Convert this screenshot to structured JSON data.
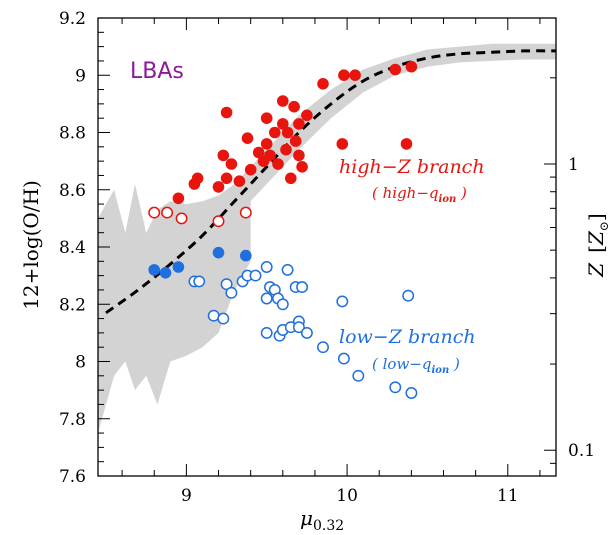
{
  "chart_data": {
    "type": "scatter",
    "xlabel": "μ",
    "xlabel_sub": "0.32",
    "ylabel": "12+log(O/H)",
    "y2label": "Z [Z☉]",
    "y2label_parts": [
      "Z",
      "[",
      "Z",
      "⊙",
      "]"
    ],
    "xlim": [
      8.45,
      11.3
    ],
    "ylim": [
      7.6,
      9.2
    ],
    "x_ticks": [
      9,
      10,
      11
    ],
    "x_tick_labels": [
      "9",
      "10",
      "11"
    ],
    "y_ticks": [
      7.6,
      7.8,
      8.0,
      8.2,
      8.4,
      8.6,
      8.8,
      9.0,
      9.2
    ],
    "y_tick_labels": [
      "7.6",
      "7.8",
      "8",
      "8.2",
      "8.4",
      "8.6",
      "8.8",
      "9",
      "9.2"
    ],
    "y2_ticks": [
      {
        "metallicity": 1,
        "label": "1"
      },
      {
        "metallicity": 0.1,
        "label": "0.1"
      }
    ],
    "annotations": {
      "lbas": "LBAs",
      "high_branch": "high−Z branch",
      "high_sub_open": "( high−q",
      "high_sub_sub": "ion",
      "high_sub_close": " )",
      "low_branch": "low−Z branch",
      "low_sub_open": "( low−q",
      "low_sub_sub": "ion",
      "low_sub_close": " )"
    },
    "colors": {
      "high": "#e8150f",
      "low": "#1f6fde",
      "band": "#d3d3d3",
      "lba": "#8b1a9a"
    },
    "fit_curve": {
      "x": [
        8.5,
        8.7,
        8.9,
        9.1,
        9.3,
        9.5,
        9.7,
        9.9,
        10.1,
        10.3,
        10.5,
        10.7,
        10.9,
        11.1,
        11.3
      ],
      "y": [
        8.17,
        8.25,
        8.34,
        8.44,
        8.56,
        8.68,
        8.8,
        8.9,
        8.98,
        9.03,
        9.06,
        9.075,
        9.08,
        9.085,
        9.085
      ]
    },
    "fit_band": {
      "x": [
        8.5,
        8.7,
        8.9,
        9.1,
        9.3,
        9.5,
        9.7,
        9.9,
        10.1,
        10.3,
        10.5,
        10.7,
        10.9,
        11.1,
        11.3
      ],
      "upper": [
        8.22,
        8.31,
        8.4,
        8.5,
        8.62,
        8.74,
        8.86,
        8.95,
        9.02,
        9.06,
        9.09,
        9.1,
        9.11,
        9.11,
        9.11
      ],
      "lower": [
        8.12,
        8.19,
        8.28,
        8.38,
        8.5,
        8.62,
        8.74,
        8.85,
        8.94,
        9.0,
        9.03,
        9.045,
        9.05,
        9.055,
        9.055
      ]
    },
    "scatter_band": {
      "x": [
        8.45,
        8.55,
        8.62,
        8.68,
        8.75,
        8.82,
        8.9,
        9.0,
        9.1,
        9.2,
        9.3,
        9.4
      ],
      "upper": [
        8.5,
        8.6,
        8.45,
        8.62,
        8.45,
        8.53,
        8.56,
        8.55,
        8.56,
        8.58,
        8.62,
        8.63
      ],
      "lower": [
        7.75,
        7.95,
        8.0,
        7.9,
        7.95,
        7.85,
        8.0,
        8.02,
        8.05,
        8.1,
        8.25,
        8.35
      ]
    },
    "series": [
      {
        "name": "high-Z filled",
        "style": "filled",
        "color_key": "high",
        "points": [
          [
            8.95,
            8.57
          ],
          [
            9.05,
            8.62
          ],
          [
            9.07,
            8.64
          ],
          [
            9.2,
            8.61
          ],
          [
            9.23,
            8.72
          ],
          [
            9.25,
            8.87
          ],
          [
            9.25,
            8.64
          ],
          [
            9.28,
            8.69
          ],
          [
            9.33,
            8.63
          ],
          [
            9.38,
            8.78
          ],
          [
            9.4,
            8.67
          ],
          [
            9.45,
            8.73
          ],
          [
            9.48,
            8.7
          ],
          [
            9.5,
            8.85
          ],
          [
            9.5,
            8.76
          ],
          [
            9.52,
            8.72
          ],
          [
            9.55,
            8.8
          ],
          [
            9.57,
            8.69
          ],
          [
            9.6,
            8.91
          ],
          [
            9.6,
            8.83
          ],
          [
            9.62,
            8.74
          ],
          [
            9.63,
            8.8
          ],
          [
            9.65,
            8.64
          ],
          [
            9.67,
            8.89
          ],
          [
            9.68,
            8.77
          ],
          [
            9.7,
            8.83
          ],
          [
            9.7,
            8.72
          ],
          [
            9.72,
            8.68
          ],
          [
            9.75,
            8.86
          ],
          [
            9.85,
            8.97
          ],
          [
            9.97,
            8.76
          ],
          [
            9.98,
            9.0
          ],
          [
            10.05,
            9.0
          ],
          [
            10.3,
            9.02
          ],
          [
            10.37,
            8.76
          ],
          [
            10.4,
            9.03
          ]
        ]
      },
      {
        "name": "high-Z open",
        "style": "open",
        "color_key": "high",
        "points": [
          [
            8.8,
            8.52
          ],
          [
            8.88,
            8.52
          ],
          [
            8.97,
            8.5
          ],
          [
            9.2,
            8.49
          ],
          [
            9.37,
            8.52
          ]
        ]
      },
      {
        "name": "low-Z filled",
        "style": "filled",
        "color_key": "low",
        "points": [
          [
            8.8,
            8.32
          ],
          [
            8.87,
            8.31
          ],
          [
            8.95,
            8.33
          ],
          [
            9.2,
            8.38
          ],
          [
            9.37,
            8.37
          ]
        ]
      },
      {
        "name": "low-Z open",
        "style": "open",
        "color_key": "low",
        "points": [
          [
            9.05,
            8.28
          ],
          [
            9.08,
            8.28
          ],
          [
            9.17,
            8.16
          ],
          [
            9.23,
            8.15
          ],
          [
            9.25,
            8.27
          ],
          [
            9.28,
            8.24
          ],
          [
            9.35,
            8.28
          ],
          [
            9.38,
            8.3
          ],
          [
            9.43,
            8.3
          ],
          [
            9.5,
            8.33
          ],
          [
            9.5,
            8.22
          ],
          [
            9.5,
            8.1
          ],
          [
            9.52,
            8.26
          ],
          [
            9.55,
            8.25
          ],
          [
            9.57,
            8.22
          ],
          [
            9.58,
            8.09
          ],
          [
            9.6,
            8.2
          ],
          [
            9.6,
            8.11
          ],
          [
            9.63,
            8.32
          ],
          [
            9.65,
            8.12
          ],
          [
            9.68,
            8.26
          ],
          [
            9.7,
            8.14
          ],
          [
            9.7,
            8.12
          ],
          [
            9.72,
            8.26
          ],
          [
            9.75,
            8.1
          ],
          [
            9.85,
            8.05
          ],
          [
            9.97,
            8.21
          ],
          [
            9.98,
            8.01
          ],
          [
            10.07,
            7.95
          ],
          [
            10.3,
            7.91
          ],
          [
            10.38,
            8.23
          ],
          [
            10.4,
            7.89
          ]
        ]
      }
    ]
  }
}
